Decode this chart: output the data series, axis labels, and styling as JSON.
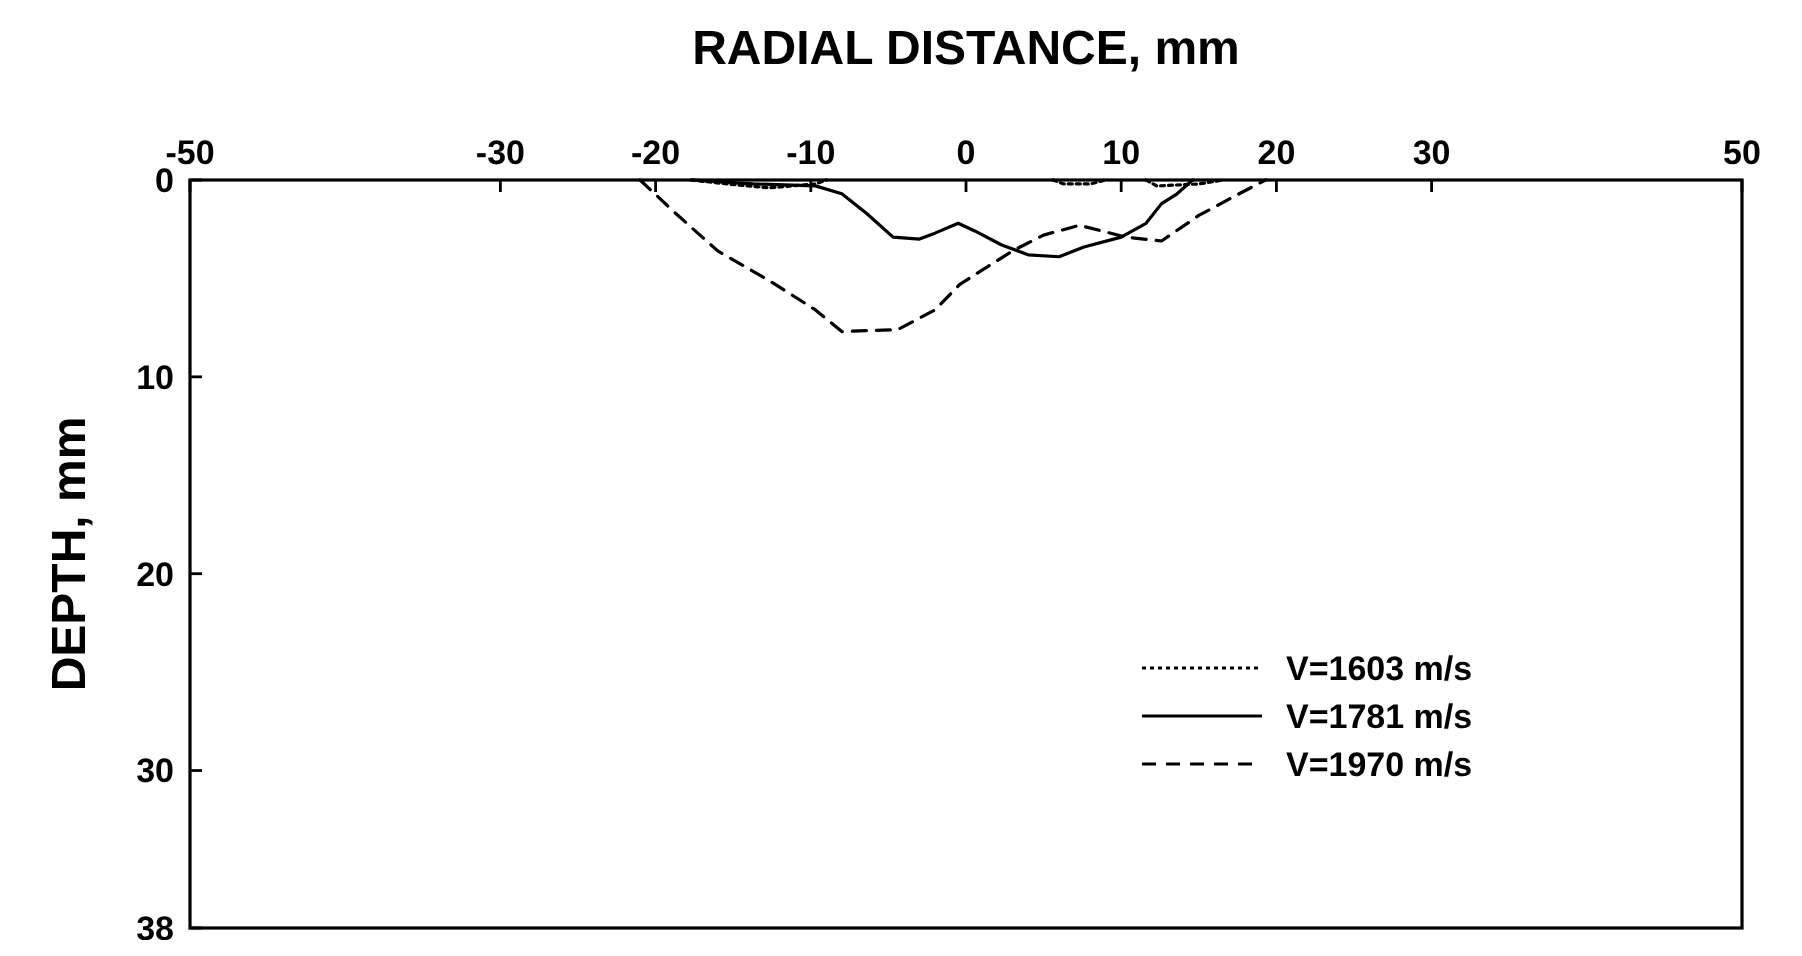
{
  "chart_data": {
    "type": "line",
    "xlabel": "RADIAL DISTANCE, mm",
    "ylabel": "DEPTH, mm",
    "xlim": [
      -50,
      50
    ],
    "xticks": [
      -50,
      -30,
      -20,
      -10,
      0,
      10,
      20,
      30,
      50
    ],
    "ylim": [
      38,
      0
    ],
    "yticks": [
      0,
      10,
      20,
      30,
      38
    ],
    "legend": "bottom right",
    "grid": false,
    "series": [
      {
        "name": "V=1603 m/s",
        "color": "#000000",
        "line_style": "dotted",
        "x": [
          -17.7,
          -15.4,
          -12.7,
          -9.7,
          -9,
          -7,
          5.6,
          6.3,
          8,
          9,
          10.5,
          11.6,
          12.3,
          15,
          16.6
        ],
        "values": [
          0,
          0.2,
          0.4,
          0.2,
          0,
          null,
          0,
          0.2,
          0.2,
          0,
          null,
          0,
          0.3,
          0.2,
          0
        ]
      },
      {
        "name": "V=1781 m/s",
        "color": "#000000",
        "line_style": "solid",
        "x": [
          -17.7,
          -13.7,
          -9.7,
          -8,
          -6.4,
          -4.7,
          -3,
          -2,
          -0.5,
          0.6,
          2.3,
          4,
          6,
          7.6,
          10,
          11.6,
          12.6,
          13.6,
          14.6
        ],
        "values": [
          0,
          0.2,
          0.3,
          0.7,
          1.7,
          2.9,
          3,
          2.7,
          2.2,
          2.6,
          3.3,
          3.8,
          3.9,
          3.4,
          2.9,
          2.2,
          1.2,
          0.7,
          0
        ]
      },
      {
        "name": "V=1970 m/s",
        "color": "#000000",
        "line_style": "dashed",
        "x": [
          -21,
          -18.7,
          -16,
          -12.7,
          -9.7,
          -8,
          -4.4,
          -2,
          -0.4,
          3,
          5,
          7.3,
          10.3,
          12.6,
          15,
          17.6,
          19.3
        ],
        "values": [
          0,
          1.7,
          3.6,
          5.1,
          6.6,
          7.7,
          7.6,
          6.6,
          5.3,
          3.6,
          2.8,
          2.3,
          2.9,
          3.1,
          1.8,
          0.7,
          0
        ]
      }
    ]
  }
}
